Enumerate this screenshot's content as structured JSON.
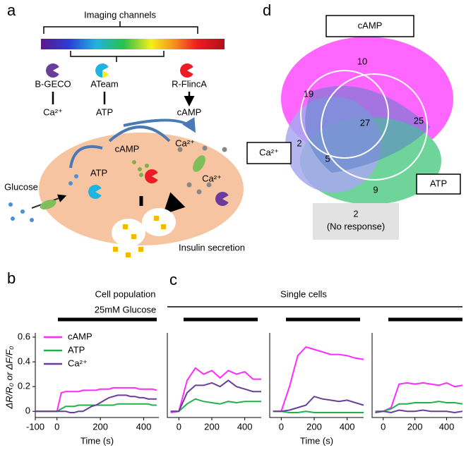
{
  "panel_labels": [
    "a",
    "b",
    "c",
    "d"
  ],
  "diagram": {
    "title": "Imaging channels",
    "sensors": [
      {
        "name": "B-GECO",
        "target": "Ca²⁺"
      },
      {
        "name": "ATeam",
        "target": "ATP"
      },
      {
        "name": "R-FlincA",
        "target": "cAMP"
      }
    ],
    "cell_labels": {
      "camp": "cAMP",
      "atp": "ATP",
      "ca_top": "Ca²⁺",
      "ca_bottom": "Ca²⁺",
      "glucose": "Glucose",
      "secretion": "Insulin secretion"
    }
  },
  "panel_c_title": "Single cells",
  "chart_data": [
    {
      "type": "line",
      "title": "Cell population",
      "annotation": "25mM Glucose",
      "xlabel": "Time (s)",
      "ylabel": "ΔR/R₀ or ΔF/F₀",
      "x": [
        -100,
        -80,
        -60,
        -40,
        -20,
        0,
        20,
        40,
        60,
        80,
        100,
        120,
        140,
        160,
        180,
        200,
        220,
        240,
        260,
        280,
        300,
        320,
        340,
        360,
        380,
        400,
        420,
        440,
        460
      ],
      "xlim": [
        -100,
        470
      ],
      "ylim": [
        -0.05,
        0.6
      ],
      "xticks": [
        -100,
        0,
        200,
        400
      ],
      "yticks": [
        0,
        0.2,
        0.4,
        0.6
      ],
      "legend": "upper left",
      "series": [
        {
          "name": "cAMP",
          "color": "#ff2bff",
          "values": [
            0,
            0,
            0,
            0,
            0,
            0,
            0.15,
            0.16,
            0.16,
            0.16,
            0.16,
            0.17,
            0.17,
            0.17,
            0.17,
            0.18,
            0.18,
            0.18,
            0.19,
            0.19,
            0.19,
            0.19,
            0.19,
            0.19,
            0.18,
            0.18,
            0.18,
            0.18,
            0.17
          ]
        },
        {
          "name": "ATP",
          "color": "#22b14c",
          "values": [
            0,
            0,
            0,
            0,
            0,
            0,
            0.02,
            0.04,
            0.04,
            0.04,
            0.05,
            0.05,
            0.05,
            0.05,
            0.05,
            0.05,
            0.05,
            0.05,
            0.05,
            0.06,
            0.06,
            0.06,
            0.06,
            0.06,
            0.06,
            0.06,
            0.06,
            0.05,
            0.05
          ]
        },
        {
          "name": "Ca²⁺",
          "color": "#6a3d9a",
          "values": [
            0,
            0,
            0,
            0,
            0,
            0,
            0,
            0,
            -0.01,
            -0.01,
            0,
            0,
            0.02,
            0.04,
            0.05,
            0.07,
            0.09,
            0.11,
            0.12,
            0.13,
            0.13,
            0.13,
            0.12,
            0.12,
            0.11,
            0.11,
            0.1,
            0.1,
            0.1
          ]
        }
      ]
    },
    {
      "type": "line",
      "x": [
        -50,
        0,
        50,
        100,
        150,
        200,
        250,
        300,
        350,
        400,
        450,
        500
      ],
      "xlim": [
        -70,
        500
      ],
      "ylim": [
        -0.05,
        0.6
      ],
      "xticks": [
        0,
        200,
        400
      ],
      "series": [
        {
          "color": "#ff2bff",
          "values": [
            -0.01,
            0,
            0.25,
            0.35,
            0.3,
            0.33,
            0.27,
            0.33,
            0.3,
            0.32,
            0.26,
            0.26
          ]
        },
        {
          "color": "#22b14c",
          "values": [
            0,
            0,
            0.06,
            0.1,
            0.08,
            0.07,
            0.06,
            0.08,
            0.07,
            0.08,
            0.08,
            0.08
          ]
        },
        {
          "color": "#6a3d9a",
          "values": [
            0,
            0,
            0.15,
            0.21,
            0.21,
            0.23,
            0.2,
            0.25,
            0.2,
            0.18,
            0.16,
            0.16
          ]
        }
      ]
    },
    {
      "type": "line",
      "xlabel": "Time (s)",
      "x": [
        -50,
        0,
        50,
        100,
        150,
        200,
        250,
        300,
        350,
        400,
        450,
        500
      ],
      "xlim": [
        -70,
        500
      ],
      "ylim": [
        -0.05,
        0.6
      ],
      "xticks": [
        0,
        200,
        400
      ],
      "series": [
        {
          "color": "#ff2bff",
          "values": [
            0,
            0,
            0.2,
            0.45,
            0.52,
            0.5,
            0.48,
            0.46,
            0.46,
            0.45,
            0.43,
            0.42
          ]
        },
        {
          "color": "#22b14c",
          "values": [
            0,
            0,
            -0.01,
            -0.01,
            0,
            -0.01,
            -0.01,
            -0.01,
            -0.01,
            -0.01,
            -0.01,
            -0.01
          ]
        },
        {
          "color": "#6a3d9a",
          "values": [
            0,
            0,
            0.01,
            0.03,
            0.05,
            0.12,
            0.1,
            0.09,
            0.08,
            0.09,
            0.07,
            0.05
          ]
        }
      ]
    },
    {
      "type": "line",
      "x": [
        -50,
        0,
        50,
        100,
        150,
        200,
        250,
        300,
        350,
        400,
        450,
        500
      ],
      "xlim": [
        -70,
        500
      ],
      "ylim": [
        -0.05,
        0.6
      ],
      "xticks": [
        0,
        200,
        400
      ],
      "series": [
        {
          "color": "#ff2bff",
          "values": [
            0,
            0,
            0.03,
            0.22,
            0.23,
            0.22,
            0.23,
            0.22,
            0.21,
            0.23,
            0.2,
            0.21
          ]
        },
        {
          "color": "#22b14c",
          "values": [
            0,
            0,
            0.02,
            0.06,
            0.06,
            0.07,
            0.07,
            0.07,
            0.08,
            0.07,
            0.07,
            0.06
          ]
        },
        {
          "color": "#6a3d9a",
          "values": [
            -0.01,
            0,
            -0.01,
            0.01,
            0,
            0,
            0.01,
            0,
            0,
            0,
            -0.01,
            0
          ]
        }
      ]
    }
  ],
  "venn": {
    "sets": [
      "cAMP",
      "Ca²⁺",
      "ATP"
    ],
    "regions": [
      10,
      19,
      27,
      25,
      2,
      5,
      9
    ],
    "no_response": {
      "count": 2,
      "label": "(No response)"
    }
  }
}
